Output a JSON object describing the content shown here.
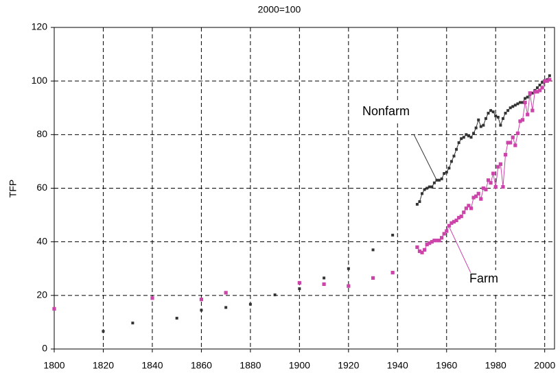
{
  "chart_data": {
    "type": "line",
    "title": "2000=100",
    "y_label": "TFP",
    "xlim": [
      1800,
      2004
    ],
    "xticks": [
      1800,
      1820,
      1840,
      1860,
      1880,
      1900,
      1920,
      1940,
      1960,
      1980,
      2000
    ],
    "ylim": [
      0,
      120
    ],
    "yticks": [
      0,
      20,
      40,
      60,
      80,
      100,
      120
    ],
    "grid": true,
    "series": [
      {
        "name": "Nonfarm",
        "color": "#333333",
        "x": [
          1820,
          null,
          1832,
          null,
          1850,
          null,
          1860,
          null,
          1870,
          null,
          1880,
          null,
          1890,
          null,
          1900,
          null,
          1910,
          null,
          1920,
          null,
          1930,
          null,
          1938,
          null,
          1948,
          1949,
          1950,
          1951,
          1952,
          1953,
          1954,
          1955,
          1956,
          1957,
          1958,
          1959,
          1960,
          1961,
          1962,
          1963,
          1964,
          1965,
          1966,
          1967,
          1968,
          1969,
          1970,
          1971,
          1972,
          1973,
          1974,
          1975,
          1976,
          1977,
          1978,
          1979,
          1980,
          1981,
          1982,
          1983,
          1984,
          1985,
          1986,
          1987,
          1988,
          1989,
          1990,
          1991,
          1992,
          1993,
          1994,
          1995,
          1996,
          1997,
          1998,
          1999,
          2000,
          2001,
          2002
        ],
        "values": [
          6.6,
          null,
          9.7,
          null,
          11.5,
          null,
          14.5,
          null,
          15.5,
          null,
          16.7,
          null,
          20.2,
          null,
          22.5,
          null,
          26.5,
          null,
          30,
          null,
          37,
          null,
          42.5,
          null,
          54,
          55,
          58,
          59.5,
          60,
          60.5,
          60.5,
          62,
          63,
          63,
          63.5,
          65.5,
          66,
          67.5,
          70,
          72,
          74.5,
          77,
          78.5,
          79,
          80,
          79.5,
          79,
          80.5,
          82.5,
          85.5,
          83,
          83.5,
          86,
          88,
          89,
          88.5,
          87,
          86.5,
          83.5,
          86,
          88,
          89,
          90,
          90.5,
          91,
          91.5,
          92,
          92,
          93.5,
          94,
          95,
          95.5,
          96.5,
          97.5,
          98.5,
          99.5,
          100,
          100.5,
          102
        ]
      },
      {
        "name": "Farm",
        "color": "#cc44aa",
        "x": [
          1800,
          null,
          1840,
          null,
          1860,
          null,
          1870,
          null,
          1900,
          null,
          1910,
          null,
          1920,
          null,
          1930,
          null,
          1938,
          null,
          1948,
          1949,
          1950,
          1951,
          1952,
          1953,
          1954,
          1955,
          1956,
          1957,
          1958,
          1959,
          1960,
          1961,
          1962,
          1963,
          1964,
          1965,
          1966,
          1967,
          1968,
          1969,
          1970,
          1971,
          1972,
          1973,
          1974,
          1975,
          1976,
          1977,
          1978,
          1979,
          1980,
          1981,
          1982,
          1983,
          1984,
          1985,
          1986,
          1987,
          1988,
          1989,
          1990,
          1991,
          1992,
          1993,
          1994,
          1995,
          1996,
          1997,
          1998,
          1999,
          2000,
          2001,
          2002
        ],
        "values": [
          15,
          null,
          19,
          null,
          18.5,
          null,
          21,
          null,
          24.7,
          null,
          24.2,
          null,
          23.5,
          null,
          26.5,
          null,
          28.5,
          null,
          38,
          36.5,
          36,
          37,
          39,
          39.5,
          40,
          40.5,
          40.5,
          40.5,
          41.5,
          43,
          44,
          46,
          47,
          47.5,
          48,
          49,
          49.5,
          51,
          52.5,
          53.5,
          52.5,
          56.5,
          57,
          58,
          56,
          60,
          59.5,
          63,
          62,
          65.5,
          60.5,
          68,
          69,
          60.5,
          72.5,
          77,
          77,
          79,
          76,
          80.5,
          85,
          85.5,
          92,
          87.5,
          95.5,
          89,
          96,
          96,
          96.5,
          97.5,
          100,
          100,
          100.5
        ]
      }
    ]
  }
}
